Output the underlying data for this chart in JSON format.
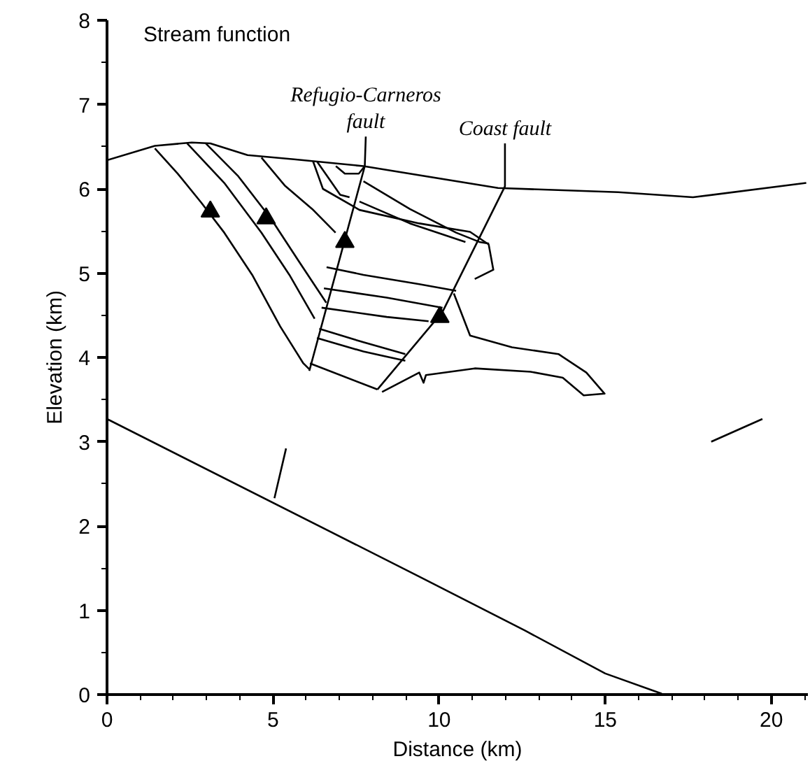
{
  "chart_data": {
    "type": "line",
    "title": "Stream function",
    "xlabel": "Distance (km)",
    "ylabel": "Elevation (km)",
    "xlim": [
      0,
      21.1
    ],
    "ylim": [
      0,
      8
    ],
    "xticks": [
      0,
      {
        "value": 1,
        "label": null
      },
      {
        "value": 2,
        "label": null
      },
      {
        "value": 3,
        "label": null
      },
      {
        "value": 4,
        "label": null
      },
      5,
      {
        "value": 6,
        "label": null
      },
      {
        "value": 7,
        "label": null
      },
      {
        "value": 8,
        "label": null
      },
      {
        "value": 9,
        "label": null
      },
      10,
      {
        "value": 11,
        "label": null
      },
      {
        "value": 12,
        "label": null
      },
      {
        "value": 13,
        "label": null
      },
      {
        "value": 14,
        "label": null
      },
      15,
      {
        "value": 16,
        "label": null
      },
      {
        "value": 17,
        "label": null
      },
      {
        "value": 18,
        "label": null
      },
      {
        "value": 19,
        "label": null
      },
      20,
      {
        "value": 21,
        "label": null
      }
    ],
    "yticks": [
      0,
      {
        "value": 0.5,
        "label": null
      },
      1,
      {
        "value": 1.5,
        "label": null
      },
      2,
      {
        "value": 2.5,
        "label": null
      },
      3,
      {
        "value": 3.5,
        "label": null
      },
      4,
      {
        "value": 4.5,
        "label": null
      },
      5,
      {
        "value": 5.5,
        "label": null
      },
      6,
      {
        "value": 6.5,
        "label": null
      },
      7,
      {
        "value": 7.5,
        "label": null
      },
      8
    ],
    "grid": false,
    "marker": "none",
    "line_style": "solid",
    "annotations": [
      {
        "text": "Refugio-Carneros\nfault",
        "x": 7.79,
        "y": 6.62
      },
      {
        "text": "Coast fault",
        "x": 11.98,
        "y": 6.54
      }
    ],
    "series": [
      {
        "color": "#000000",
        "x": [
          0,
          1.44,
          2.55,
          3.11,
          4.23,
          5.63,
          7.72,
          11.77,
          15.39,
          17.64,
          21.05
        ],
        "values": [
          6.34,
          6.51,
          6.55,
          6.54,
          6.4,
          6.35,
          6.27,
          6.01,
          5.96,
          5.9,
          6.07
        ]
      },
      {
        "color": "#000000",
        "x": [
          6.09,
          7.76,
          7.79
        ],
        "values": [
          3.84,
          6.27,
          6.62
        ]
      },
      {
        "color": "#000000",
        "x": [
          8.14,
          10.1,
          11.98,
          11.98
        ],
        "values": [
          3.62,
          4.54,
          6.03,
          6.54
        ]
      },
      {
        "color": "#000000",
        "x": [
          0,
          9.4,
          12.58,
          15.0,
          16.7
        ],
        "values": [
          3.27,
          1.4,
          0.76,
          0.25,
          0.01
        ]
      },
      {
        "color": "#000000",
        "x": [
          5.04,
          5.39
        ],
        "values": [
          2.33,
          2.92
        ]
      },
      {
        "color": "#000000",
        "x": [
          18.19,
          19.73
        ],
        "values": [
          3.0,
          3.27
        ]
      },
      {
        "color": "#000000",
        "x": [
          1.44,
          2.13,
          2.83,
          3.53,
          4.37,
          5.21,
          5.91,
          6.09
        ],
        "values": [
          6.48,
          6.18,
          5.84,
          5.48,
          4.98,
          4.37,
          3.93,
          3.86
        ]
      },
      {
        "color": "#000000",
        "x": [
          2.41,
          3.53,
          4.65,
          5.49,
          6.25
        ],
        "values": [
          6.54,
          6.07,
          5.48,
          4.98,
          4.46
        ]
      },
      {
        "color": "#000000",
        "x": [
          2.97,
          3.95,
          4.93,
          5.76,
          6.6
        ],
        "values": [
          6.54,
          6.15,
          5.65,
          5.15,
          4.65
        ]
      },
      {
        "color": "#000000",
        "x": [
          4.65,
          5.35,
          6.18,
          6.88
        ],
        "values": [
          6.37,
          6.04,
          5.76,
          5.48
        ]
      },
      {
        "color": "#000000",
        "x": [
          6.33,
          7.02,
          7.3
        ],
        "values": [
          6.32,
          5.93,
          5.9
        ]
      },
      {
        "color": "#000000",
        "x": [
          6.61,
          7.72,
          9.4,
          10.51
        ],
        "values": [
          5.07,
          4.98,
          4.87,
          4.79
        ]
      },
      {
        "color": "#000000",
        "x": [
          6.53,
          8.42,
          10.1
        ],
        "values": [
          4.82,
          4.71,
          4.59
        ]
      },
      {
        "color": "#000000",
        "x": [
          6.46,
          8.42,
          9.68
        ],
        "values": [
          4.59,
          4.48,
          4.43
        ]
      },
      {
        "color": "#000000",
        "x": [
          6.39,
          7.72,
          8.98
        ],
        "values": [
          4.34,
          4.18,
          4.04
        ]
      },
      {
        "color": "#000000",
        "x": [
          6.32,
          7.72,
          8.98
        ],
        "values": [
          4.23,
          4.07,
          3.96
        ]
      },
      {
        "color": "#000000",
        "x": [
          6.11,
          8.14
        ],
        "values": [
          3.93,
          3.62
        ]
      },
      {
        "color": "#000000",
        "x": [
          7.72,
          9.12,
          10.51,
          11.21,
          11.5
        ],
        "values": [
          6.09,
          5.76,
          5.48,
          5.37,
          5.35
        ]
      },
      {
        "color": "#000000",
        "x": [
          7.6,
          9.12,
          10.79
        ],
        "values": [
          5.85,
          5.59,
          5.37
        ]
      },
      {
        "color": "#000000",
        "x": [
          6.2,
          6.5,
          7.6,
          9.4,
          10.93,
          11.49,
          11.63,
          11.07
        ],
        "values": [
          6.33,
          6.0,
          5.75,
          5.59,
          5.49,
          5.34,
          5.04,
          4.93
        ]
      },
      {
        "color": "#000000",
        "x": [
          10.44,
          10.93,
          12.19,
          13.59,
          14.43,
          14.98,
          14.35,
          13.72,
          12.75,
          11.07,
          9.6,
          9.53,
          9.4,
          8.28
        ],
        "values": [
          4.76,
          4.26,
          4.12,
          4.04,
          3.82,
          3.57,
          3.55,
          3.76,
          3.83,
          3.87,
          3.79,
          3.7,
          3.82,
          3.59
        ]
      },
      {
        "color": "#000000",
        "x": [
          6.89,
          7.16,
          7.58,
          7.76
        ],
        "values": [
          6.27,
          6.18,
          6.18,
          6.27
        ]
      },
      {
        "type": "scatter",
        "marker": "triangle",
        "color": "#000000",
        "x": [
          3.11,
          4.79,
          7.16,
          10.02
        ],
        "values": [
          5.73,
          5.65,
          5.37,
          4.48
        ]
      }
    ]
  }
}
